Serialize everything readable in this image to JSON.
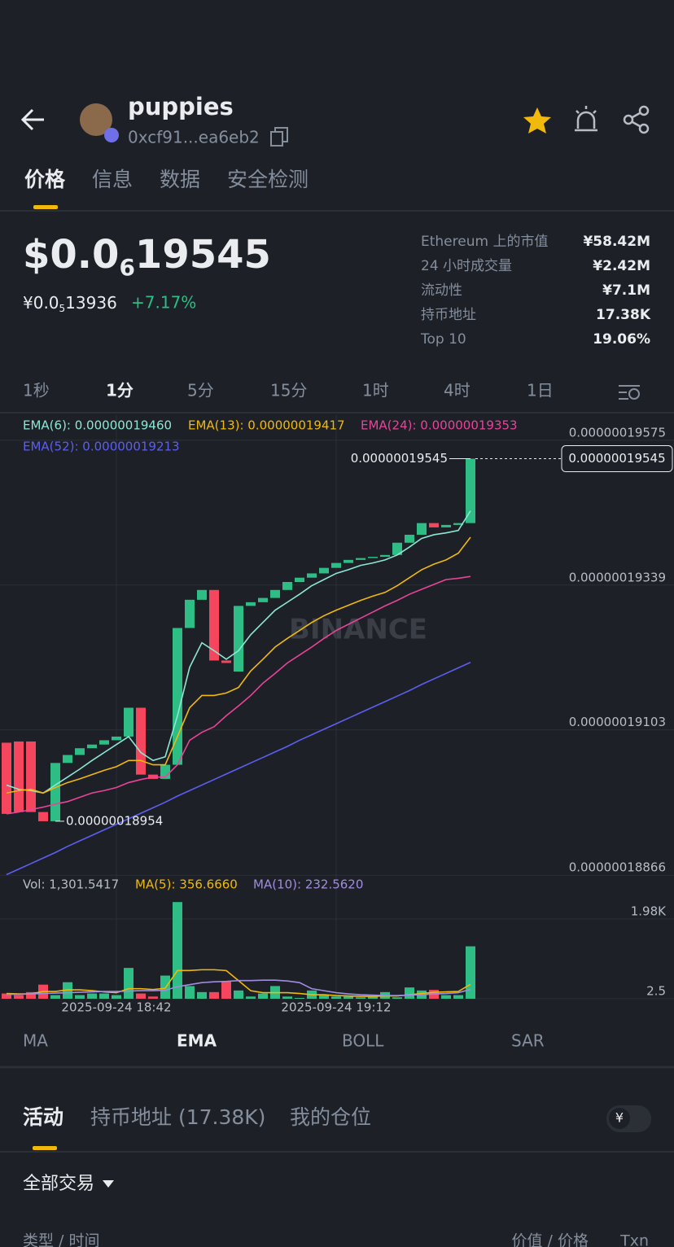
{
  "header": {
    "title": "puppies",
    "address": "0xcf91...ea6eb2"
  },
  "tabs": [
    "价格",
    "信息",
    "数据",
    "安全检测"
  ],
  "price": {
    "usd": {
      "prefix": "$0.0",
      "zeros": "6",
      "digits": "19545"
    },
    "cny": {
      "prefix": "¥0.0",
      "zeros": "5",
      "digits": "13936"
    },
    "change": "+7.17%"
  },
  "stats": [
    {
      "label": "Ethereum 上的市值",
      "value": "¥58.42M"
    },
    {
      "label": "24 小时成交量",
      "value": "¥2.42M"
    },
    {
      "label": "流动性",
      "value": "¥7.1M"
    },
    {
      "label": "持币地址",
      "value": "17.38K"
    },
    {
      "label": "Top 10",
      "value": "19.06%"
    }
  ],
  "intervals": [
    "1秒",
    "1分",
    "5分",
    "15分",
    "1时",
    "4时",
    "1日"
  ],
  "chart_data": {
    "type": "candlestick",
    "watermark": "BINANCE",
    "categories": [
      null,
      null,
      null,
      null,
      null,
      null,
      null,
      null,
      null,
      "2025-09-24 18:42",
      null,
      null,
      null,
      null,
      null,
      null,
      null,
      null,
      null,
      null,
      null,
      null,
      null,
      null,
      null,
      null,
      null,
      "2025-09-24 19:12",
      null,
      null,
      null,
      null,
      null,
      null,
      null,
      null,
      null,
      null,
      null
    ],
    "open": [
      1.9082e-07,
      1.9084e-07,
      1.9084e-07,
      1.8969e-07,
      1.8954e-07,
      1.9049e-07,
      1.9062e-07,
      1.9073e-07,
      1.9079e-07,
      1.9086e-07,
      1.9092e-07,
      1.9139e-07,
      1.903e-07,
      1.9023e-07,
      1.9046e-07,
      1.9269e-07,
      1.9315e-07,
      1.9331e-07,
      1.9216e-07,
      1.9198e-07,
      1.9305e-07,
      1.9311e-07,
      1.9318e-07,
      1.9331e-07,
      1.9344e-07,
      1.9351e-07,
      1.9358e-07,
      1.9367e-07,
      1.9375e-07,
      1.938e-07,
      1.9383e-07,
      1.9385e-07,
      1.9388e-07,
      1.9408e-07,
      1.9421e-07,
      1.944e-07,
      1.9433e-07,
      1.9437e-07,
      1.944e-07
    ],
    "close": [
      1.8966e-07,
      1.8969e-07,
      1.8969e-07,
      1.8954e-07,
      1.9049e-07,
      1.9062e-07,
      1.9073e-07,
      1.9079e-07,
      1.9086e-07,
      1.9092e-07,
      1.9139e-07,
      1.903e-07,
      1.9023e-07,
      1.9046e-07,
      1.9269e-07,
      1.9315e-07,
      1.9331e-07,
      1.9216e-07,
      1.9212e-07,
      1.9305e-07,
      1.9311e-07,
      1.9318e-07,
      1.9331e-07,
      1.9344e-07,
      1.9351e-07,
      1.9358e-07,
      1.9367e-07,
      1.9375e-07,
      1.938e-07,
      1.9383e-07,
      1.9385e-07,
      1.9388e-07,
      1.9408e-07,
      1.9421e-07,
      1.944e-07,
      1.9433e-07,
      1.9437e-07,
      1.944e-07,
      1.9545e-07
    ],
    "up_color": "#2ebd85",
    "down_color": "#f6465d",
    "ylim": [
      1.8865e-07,
      1.9616e-07
    ],
    "yticks": [
      {
        "value": 1.9575e-07,
        "label": "0.00000019575"
      },
      {
        "value": 1.9339e-07,
        "label": "0.00000019339"
      },
      {
        "value": 1.9103e-07,
        "label": "0.00000019103"
      },
      {
        "value": 1.8866e-07,
        "label": "0.00000018866"
      }
    ],
    "grid": true,
    "series": [
      {
        "name": "EMA(6): 0.00000019460",
        "color": "#8ee6d4",
        "values": [
          1.9013e-07,
          1.9006e-07,
          1.9004e-07,
          1.9e-07,
          1.9013e-07,
          1.9026e-07,
          1.9039e-07,
          1.9053e-07,
          1.9066e-07,
          1.9079e-07,
          1.9092e-07,
          1.9066e-07,
          1.9053e-07,
          1.9059e-07,
          1.9126e-07,
          1.9205e-07,
          1.9245e-07,
          1.9232e-07,
          1.9218e-07,
          1.9232e-07,
          1.9258e-07,
          1.9278e-07,
          1.9298e-07,
          1.9311e-07,
          1.9324e-07,
          1.9338e-07,
          1.9348e-07,
          1.9358e-07,
          1.9364e-07,
          1.9371e-07,
          1.9375e-07,
          1.938e-07,
          1.9388e-07,
          1.9401e-07,
          1.9415e-07,
          1.9421e-07,
          1.9424e-07,
          1.9428e-07,
          1.946e-07
        ]
      },
      {
        "name": "EMA(13): 0.00000019417",
        "color": "#f0b90b",
        "values": [
          1.9e-07,
          1.9004e-07,
          1.9006e-07,
          1.9e-07,
          1.9009e-07,
          1.9017e-07,
          1.9023e-07,
          1.903e-07,
          1.9037e-07,
          1.9043e-07,
          1.9053e-07,
          1.9053e-07,
          1.9046e-07,
          1.9046e-07,
          1.9092e-07,
          1.9139e-07,
          1.9159e-07,
          1.9159e-07,
          1.9163e-07,
          1.9172e-07,
          1.9199e-07,
          1.9218e-07,
          1.9238e-07,
          1.9252e-07,
          1.9265e-07,
          1.9278e-07,
          1.9289e-07,
          1.9298e-07,
          1.9306e-07,
          1.9314e-07,
          1.9321e-07,
          1.9327e-07,
          1.9338e-07,
          1.9351e-07,
          1.9364e-07,
          1.9373e-07,
          1.938e-07,
          1.9391e-07,
          1.9417e-07
        ]
      },
      {
        "name": "EMA(24): 0.00000019353",
        "color": "#e8449a",
        "values": [
          1.8966e-07,
          1.8969e-07,
          1.8973e-07,
          1.8977e-07,
          1.8982e-07,
          1.8986e-07,
          1.8993e-07,
          1.9e-07,
          1.9004e-07,
          1.9009e-07,
          1.9017e-07,
          1.9022e-07,
          1.9026e-07,
          1.9026e-07,
          1.9046e-07,
          1.9086e-07,
          1.9099e-07,
          1.9108e-07,
          1.9126e-07,
          1.9142e-07,
          1.9159e-07,
          1.9179e-07,
          1.9195e-07,
          1.9212e-07,
          1.9225e-07,
          1.9238e-07,
          1.9252e-07,
          1.9265e-07,
          1.9275e-07,
          1.9285e-07,
          1.9295e-07,
          1.9305e-07,
          1.9314e-07,
          1.9324e-07,
          1.9332e-07,
          1.934e-07,
          1.9348e-07,
          1.935e-07,
          1.9353e-07
        ]
      },
      {
        "name": "EMA(52): 0.00000019213",
        "color": "#5c5ff0",
        "values": [
          1.8867e-07,
          1.8876e-07,
          1.8885e-07,
          1.8894e-07,
          1.8903e-07,
          1.8913e-07,
          1.8922e-07,
          1.8931e-07,
          1.894e-07,
          1.8949e-07,
          1.8958e-07,
          1.8967e-07,
          1.8976e-07,
          1.8985e-07,
          1.8995e-07,
          1.9004e-07,
          1.9013e-07,
          1.9022e-07,
          1.9031e-07,
          1.904e-07,
          1.9049e-07,
          1.9058e-07,
          1.9067e-07,
          1.9076e-07,
          1.9086e-07,
          1.9095e-07,
          1.9104e-07,
          1.9113e-07,
          1.9122e-07,
          1.9131e-07,
          1.914e-07,
          1.9149e-07,
          1.9158e-07,
          1.9167e-07,
          1.9177e-07,
          1.9186e-07,
          1.9195e-07,
          1.9204e-07,
          1.9213e-07
        ]
      }
    ],
    "annotations": {
      "high": {
        "value": 1.9545e-07,
        "label": "0.00000019545"
      },
      "low": {
        "value": 1.8954e-07,
        "label": "0.00000018954"
      },
      "last_price": {
        "value": 1.9545e-07,
        "label": "0.00000019545"
      }
    },
    "volume": {
      "legend": "Vol: 1,301.5417",
      "values": [
        130,
        90,
        165,
        350,
        90,
        410,
        90,
        130,
        130,
        90,
        765,
        130,
        55,
        575,
        2400,
        315,
        165,
        165,
        425,
        205,
        55,
        130,
        315,
        55,
        20,
        205,
        90,
        55,
        55,
        35,
        55,
        165,
        35,
        280,
        205,
        220,
        90,
        90,
        1301.5417
      ],
      "ylim": [
        0,
        2647
      ],
      "yticks": [
        {
          "value": 1980,
          "label": "1.98K"
        },
        2.5
      ],
      "series": [
        {
          "name": "MA(5): 356.6660",
          "color": "#f0b90b",
          "values": [
            130,
            120,
            120,
            180,
            180,
            220,
            220,
            200,
            170,
            150,
            250,
            250,
            230,
            260,
            700,
            700,
            720,
            720,
            700,
            450,
            200,
            150,
            150,
            150,
            130,
            100,
            100,
            80,
            70,
            60,
            60,
            70,
            70,
            100,
            130,
            160,
            170,
            180,
            356.666
          ]
        },
        {
          "name": "MA(10): 232.5620",
          "color": "#a08de0",
          "values": [
            110,
            110,
            120,
            130,
            140,
            150,
            160,
            170,
            180,
            180,
            190,
            200,
            200,
            210,
            300,
            350,
            400,
            420,
            430,
            450,
            450,
            460,
            460,
            440,
            400,
            250,
            200,
            150,
            120,
            100,
            90,
            80,
            80,
            90,
            100,
            120,
            130,
            150,
            232.562
          ]
        }
      ]
    }
  },
  "indicators": [
    "MA",
    "EMA",
    "BOLL",
    "SAR"
  ],
  "activity_tabs": [
    "活动",
    "持币地址 (17.38K)",
    "我的仓位"
  ],
  "toggle": "¥",
  "filter": "全部交易",
  "columns": [
    "类型 / 时间",
    "价值 / 价格",
    "Txn"
  ]
}
